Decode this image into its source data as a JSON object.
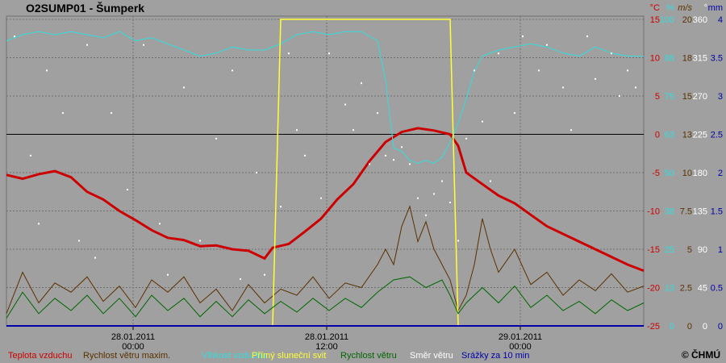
{
  "title": "O2SUMP01 - Šumperk",
  "copyright": "© ČHMÚ",
  "colors": {
    "background": "#a0a0a0",
    "grid": "#707070",
    "zero_line": "#000000",
    "temperature": "#cc0000",
    "humidity": "#33dddd",
    "sunshine": "#ffff33",
    "wind_max": "#5a3000",
    "wind": "#006600",
    "wind_dir": "#ffffff",
    "precip": "#0000aa"
  },
  "chart_data": {
    "type": "line",
    "x_ticks": [
      {
        "t": 6.7,
        "date": "28.01.2011",
        "time": "00:00"
      },
      {
        "t": 30.7,
        "date": "28.01.2011",
        "time": "12:00"
      },
      {
        "t": 54.7,
        "date": "29.01.2011",
        "time": "00:00"
      }
    ],
    "x_range_half_hours": [
      -9,
      70
    ],
    "axes": [
      {
        "unit": "°C",
        "color": "#cc0000",
        "ticks": [
          "15",
          "10",
          "5",
          "0",
          "-5",
          "-10",
          "-15",
          "-20",
          "-25"
        ],
        "range": [
          -25,
          15
        ]
      },
      {
        "unit": "%",
        "color": "#33dddd",
        "ticks": [
          "100",
          "88",
          "75",
          "63",
          "50",
          "38",
          "25",
          "13",
          "0"
        ],
        "range": [
          0,
          100
        ]
      },
      {
        "unit": "m/s",
        "color": "#5a3000",
        "ticks": [
          "20",
          "18",
          "15",
          "13",
          "10",
          "7.5",
          "5",
          "2.5",
          "0"
        ],
        "range": [
          0,
          20
        ]
      },
      {
        "unit": "°",
        "color": "#ffffff",
        "ticks": [
          "360",
          "315",
          "270",
          "225",
          "180",
          "135",
          "90",
          "45",
          "0"
        ],
        "range": [
          0,
          360
        ]
      },
      {
        "unit": "mm",
        "color": "#0000aa",
        "ticks": [
          "4",
          "3.5",
          "3",
          "2.5",
          "2",
          "1.5",
          "1",
          "0.5",
          "0"
        ],
        "range": [
          0,
          4
        ]
      }
    ],
    "series": [
      {
        "name": "Teplota vzduchu",
        "axis": 0,
        "color": "#cc0000",
        "points": [
          [
            -9,
            -5.3
          ],
          [
            -7,
            -5.8
          ],
          [
            -5,
            -5.2
          ],
          [
            -3,
            -4.8
          ],
          [
            -1,
            -5.6
          ],
          [
            1,
            -7.5
          ],
          [
            3,
            -8.5
          ],
          [
            5,
            -10
          ],
          [
            7,
            -11.2
          ],
          [
            9,
            -12.5
          ],
          [
            11,
            -13.5
          ],
          [
            13,
            -13.8
          ],
          [
            15,
            -14.6
          ],
          [
            17,
            -14.5
          ],
          [
            19,
            -15
          ],
          [
            21,
            -15.2
          ],
          [
            23,
            -16.2
          ],
          [
            24,
            -14.8
          ],
          [
            26,
            -14.3
          ],
          [
            28,
            -12.7
          ],
          [
            30,
            -11
          ],
          [
            32,
            -8.5
          ],
          [
            34,
            -6.5
          ],
          [
            36,
            -3.5
          ],
          [
            38,
            -1
          ],
          [
            40,
            0.3
          ],
          [
            42,
            0.8
          ],
          [
            44,
            0.5
          ],
          [
            46,
            0
          ],
          [
            47,
            -1.5
          ],
          [
            48,
            -5
          ],
          [
            50,
            -6.5
          ],
          [
            52,
            -8
          ],
          [
            54,
            -9
          ],
          [
            56,
            -10.5
          ],
          [
            58,
            -12
          ],
          [
            60,
            -13
          ],
          [
            62,
            -14
          ],
          [
            64,
            -15
          ],
          [
            66,
            -16
          ],
          [
            68,
            -17
          ],
          [
            70,
            -17.8
          ]
        ]
      },
      {
        "name": "Rychlost větru maxim.",
        "axis": 2,
        "color": "#5a3000",
        "points": [
          [
            -9,
            0.8
          ],
          [
            -7,
            3.5
          ],
          [
            -5,
            1.5
          ],
          [
            -3,
            2.8
          ],
          [
            -1,
            2.2
          ],
          [
            1,
            3.2
          ],
          [
            3,
            1.6
          ],
          [
            5,
            2.6
          ],
          [
            7,
            1.2
          ],
          [
            9,
            3
          ],
          [
            11,
            2.2
          ],
          [
            13,
            3.2
          ],
          [
            15,
            1.5
          ],
          [
            17,
            2.4
          ],
          [
            19,
            1
          ],
          [
            21,
            2.7
          ],
          [
            23,
            1.5
          ],
          [
            25,
            2.4
          ],
          [
            27,
            2
          ],
          [
            29,
            3.2
          ],
          [
            31,
            1.8
          ],
          [
            33,
            2.8
          ],
          [
            35,
            2.5
          ],
          [
            37,
            4
          ],
          [
            38,
            5
          ],
          [
            39,
            4
          ],
          [
            40,
            6.5
          ],
          [
            41,
            7.8
          ],
          [
            42,
            5.5
          ],
          [
            43,
            6.8
          ],
          [
            44,
            5
          ],
          [
            45,
            4
          ],
          [
            46,
            3
          ],
          [
            47,
            1
          ],
          [
            48,
            2
          ],
          [
            49,
            4
          ],
          [
            50,
            7
          ],
          [
            51,
            5
          ],
          [
            52,
            3.5
          ],
          [
            54,
            5
          ],
          [
            56,
            2.7
          ],
          [
            58,
            3.5
          ],
          [
            60,
            2
          ],
          [
            62,
            3
          ],
          [
            64,
            2.3
          ],
          [
            66,
            3.4
          ],
          [
            68,
            2.2
          ],
          [
            70,
            2.6
          ]
        ]
      },
      {
        "name": "Vlhkost vzduchu",
        "axis": 1,
        "color": "#33dddd",
        "points": [
          [
            -9,
            93
          ],
          [
            -7,
            95
          ],
          [
            -5,
            96
          ],
          [
            -3,
            95
          ],
          [
            -1,
            96
          ],
          [
            1,
            95
          ],
          [
            3,
            94
          ],
          [
            5,
            96
          ],
          [
            7,
            93
          ],
          [
            9,
            94
          ],
          [
            11,
            92
          ],
          [
            13,
            90
          ],
          [
            15,
            88
          ],
          [
            17,
            89
          ],
          [
            19,
            91
          ],
          [
            21,
            90
          ],
          [
            23,
            90
          ],
          [
            25,
            92
          ],
          [
            27,
            95
          ],
          [
            29,
            96
          ],
          [
            31,
            95
          ],
          [
            33,
            96
          ],
          [
            35,
            96
          ],
          [
            37,
            93
          ],
          [
            38,
            80
          ],
          [
            39,
            58
          ],
          [
            40,
            57
          ],
          [
            41,
            54
          ],
          [
            42,
            53
          ],
          [
            43,
            54
          ],
          [
            44,
            53
          ],
          [
            45,
            55
          ],
          [
            46,
            60
          ],
          [
            47,
            66
          ],
          [
            48,
            74
          ],
          [
            49,
            83
          ],
          [
            50,
            88
          ],
          [
            52,
            90
          ],
          [
            54,
            91
          ],
          [
            56,
            92
          ],
          [
            58,
            91
          ],
          [
            60,
            89
          ],
          [
            62,
            88
          ],
          [
            64,
            91
          ],
          [
            66,
            89
          ],
          [
            68,
            88
          ],
          [
            70,
            88
          ]
        ]
      },
      {
        "name": "Přímý sluneční svit",
        "axis": 0,
        "color": "#ffff33",
        "points": [
          [
            -9,
            -25
          ],
          [
            24,
            -25
          ],
          [
            25,
            15
          ],
          [
            46,
            15
          ],
          [
            47,
            -25
          ],
          [
            70,
            -25
          ]
        ]
      },
      {
        "name": "Rychlost větru",
        "axis": 2,
        "color": "#006600",
        "points": [
          [
            -9,
            0.5
          ],
          [
            -7,
            2.2
          ],
          [
            -5,
            0.8
          ],
          [
            -3,
            1.8
          ],
          [
            -1,
            1
          ],
          [
            1,
            2
          ],
          [
            3,
            0.8
          ],
          [
            5,
            1.8
          ],
          [
            7,
            0.6
          ],
          [
            9,
            2
          ],
          [
            11,
            1
          ],
          [
            13,
            1.8
          ],
          [
            15,
            0.6
          ],
          [
            17,
            1.6
          ],
          [
            19,
            0.6
          ],
          [
            21,
            1.7
          ],
          [
            23,
            0.8
          ],
          [
            25,
            1.6
          ],
          [
            27,
            0.9
          ],
          [
            29,
            1.8
          ],
          [
            31,
            1
          ],
          [
            33,
            1.8
          ],
          [
            35,
            1.2
          ],
          [
            37,
            2.2
          ],
          [
            39,
            3
          ],
          [
            41,
            3.2
          ],
          [
            43,
            2.5
          ],
          [
            45,
            3
          ],
          [
            46,
            2
          ],
          [
            47,
            0.8
          ],
          [
            48,
            1.5
          ],
          [
            50,
            2.5
          ],
          [
            52,
            1.5
          ],
          [
            54,
            2.6
          ],
          [
            56,
            1.2
          ],
          [
            58,
            2
          ],
          [
            60,
            1
          ],
          [
            62,
            1.6
          ],
          [
            64,
            0.8
          ],
          [
            66,
            1.7
          ],
          [
            68,
            1
          ],
          [
            70,
            1.5
          ]
        ]
      },
      {
        "name": "Směr větru",
        "axis": 3,
        "color": "#ffffff",
        "points": [
          [
            -8,
            340
          ],
          [
            -6,
            200
          ],
          [
            -5,
            120
          ],
          [
            -4,
            300
          ],
          [
            -2,
            250
          ],
          [
            0,
            100
          ],
          [
            1,
            330
          ],
          [
            2,
            80
          ],
          [
            4,
            250
          ],
          [
            6,
            160
          ],
          [
            8,
            330
          ],
          [
            10,
            120
          ],
          [
            11,
            60
          ],
          [
            13,
            280
          ],
          [
            15,
            100
          ],
          [
            17,
            220
          ],
          [
            19,
            300
          ],
          [
            20,
            55
          ],
          [
            22,
            180
          ],
          [
            23,
            60
          ],
          [
            25,
            140
          ],
          [
            26,
            320
          ],
          [
            27,
            230
          ],
          [
            28,
            200
          ],
          [
            30,
            150
          ],
          [
            31,
            320
          ],
          [
            33,
            260
          ],
          [
            34,
            230
          ],
          [
            35,
            285
          ],
          [
            36,
            190
          ],
          [
            37,
            250
          ],
          [
            38,
            200
          ],
          [
            39,
            195
          ],
          [
            40,
            210
          ],
          [
            41,
            190
          ],
          [
            42,
            150
          ],
          [
            43,
            130
          ],
          [
            44,
            155
          ],
          [
            45,
            170
          ],
          [
            46,
            145
          ],
          [
            47,
            100
          ],
          [
            48,
            220
          ],
          [
            49,
            300
          ],
          [
            50,
            240
          ],
          [
            51,
            170
          ],
          [
            52,
            320
          ],
          [
            54,
            250
          ],
          [
            55,
            340
          ],
          [
            57,
            300
          ],
          [
            58,
            330
          ],
          [
            60,
            280
          ],
          [
            61,
            230
          ],
          [
            63,
            340
          ],
          [
            64,
            290
          ],
          [
            66,
            320
          ],
          [
            67,
            270
          ],
          [
            68,
            300
          ],
          [
            69,
            280
          ]
        ]
      },
      {
        "name": "Srážky za 10 min",
        "axis": 4,
        "color": "#0000aa",
        "points": [
          [
            -9,
            0
          ],
          [
            70,
            0
          ]
        ]
      }
    ]
  }
}
